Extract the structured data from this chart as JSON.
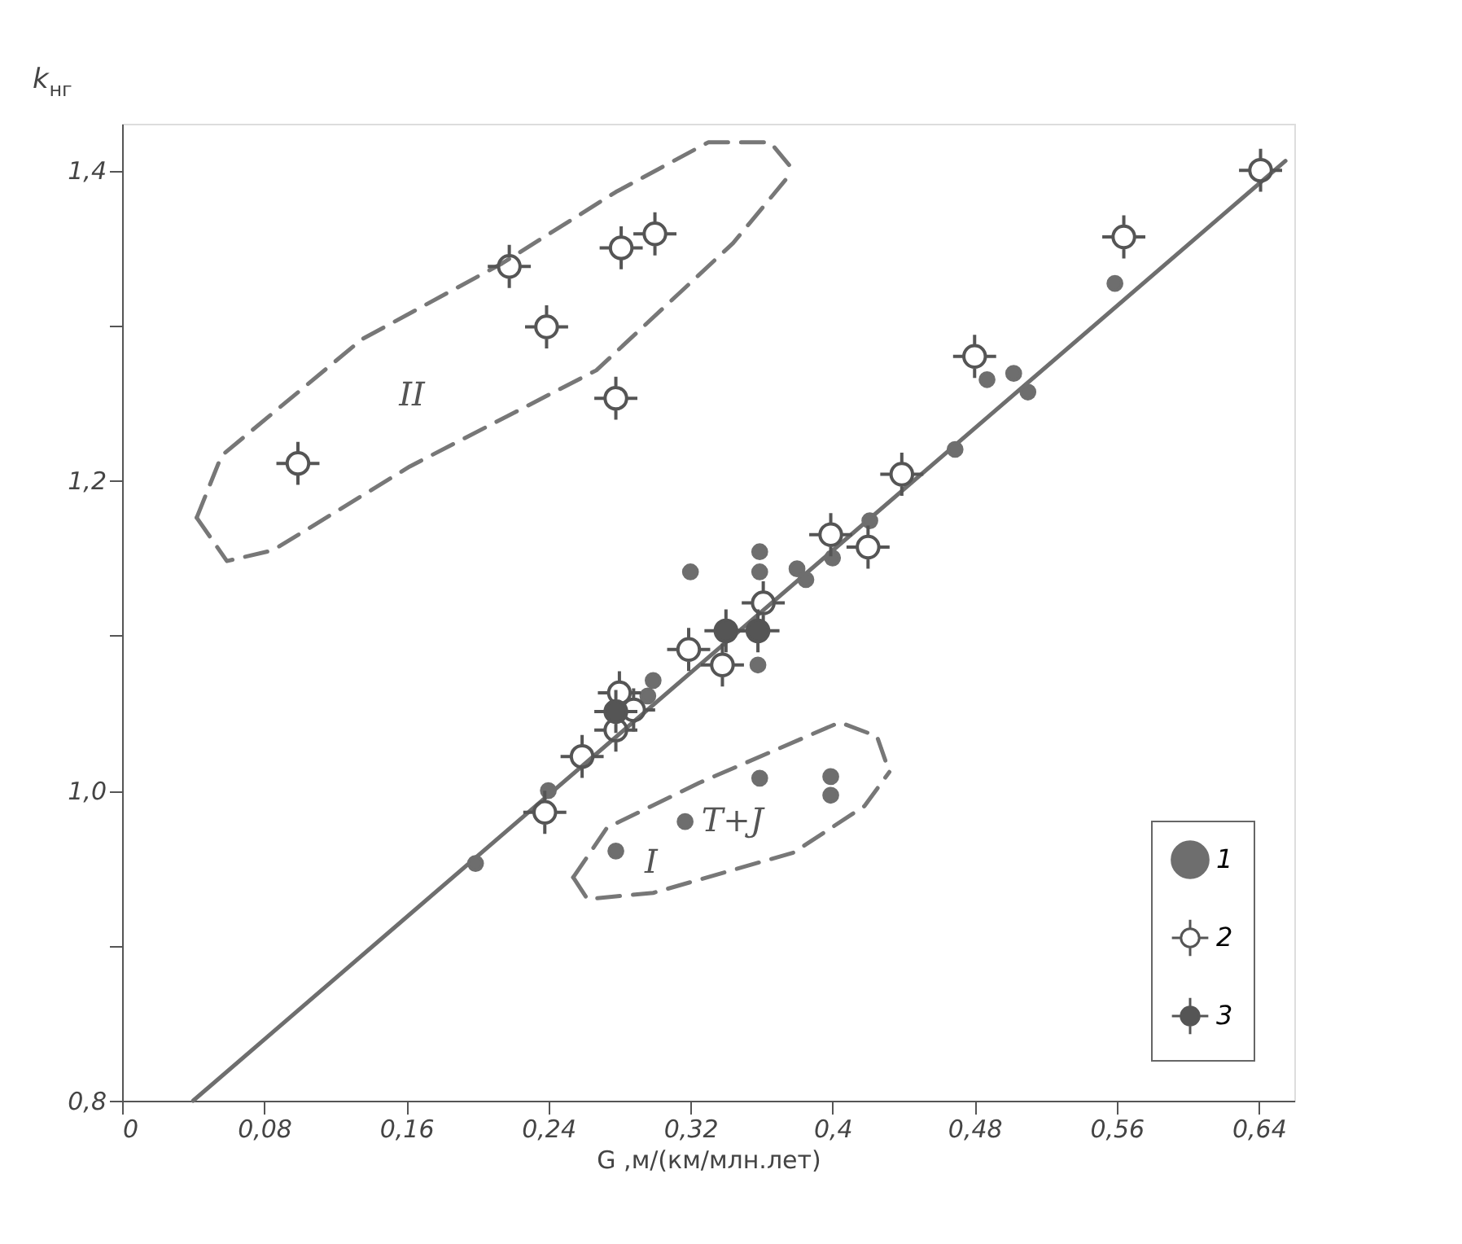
{
  "chart_data": {
    "type": "scatter",
    "xlabel": "G ,м/(км/млн.лет)",
    "ylabel": "k$_{нг}$",
    "xlim": [
      0,
      0.66
    ],
    "ylim": [
      0.8,
      1.43
    ],
    "xticks": [
      0,
      {
        "value": 0.08,
        "label": "0,08"
      },
      {
        "value": 0.16,
        "label": "0,16"
      },
      {
        "value": 0.24,
        "label": "0,24"
      },
      {
        "value": 0.32,
        "label": "0,32"
      },
      {
        "value": 0.4,
        "label": "0,4"
      },
      {
        "value": 0.48,
        "label": "0,48"
      },
      {
        "value": 0.56,
        "label": "0,56"
      },
      {
        "value": 0.64,
        "label": "0,64"
      }
    ],
    "yticks": [
      {
        "value": 0.8,
        "label": "0,8"
      },
      {
        "value": 0.9,
        "label": null
      },
      {
        "value": 1.0,
        "label": "1,0"
      },
      {
        "value": 1.1,
        "label": null
      },
      {
        "value": 1.2,
        "label": "1,2"
      },
      {
        "value": 1.3,
        "label": null
      },
      {
        "value": 1.4,
        "label": "1,4"
      }
    ],
    "grid": false,
    "legend": "bottom right",
    "annotations": [
      "II",
      "I",
      {
        "text": "T+J",
        "x": 0.317,
        "y": 0.98
      }
    ],
    "series": [
      {
        "name": "1",
        "marker": "circle",
        "color": "#6e6e6e",
        "x": [
          0.32,
          0.487,
          0.502,
          0.51,
          0.559,
          0.469,
          0.421,
          0.359,
          0.359,
          0.38,
          0.385,
          0.4,
          0.358,
          0.299,
          0.296,
          0.24,
          0.199,
          0.278,
          0.317,
          0.359,
          0.399,
          0.399
        ],
        "values": [
          1.141,
          1.265,
          1.269,
          1.257,
          1.327,
          1.22,
          1.174,
          1.154,
          1.141,
          1.143,
          1.136,
          1.15,
          1.081,
          1.071,
          1.061,
          1.0,
          0.953,
          0.961,
          0.98,
          1.008,
          1.009,
          0.997
        ]
      },
      {
        "name": "2",
        "marker": "cross",
        "color": "#555555",
        "x": [
          0.099,
          0.218,
          0.239,
          0.281,
          0.3,
          0.278,
          0.641,
          0.564,
          0.48,
          0.439,
          0.399,
          0.42,
          0.361,
          0.319,
          0.338,
          0.28,
          0.288,
          0.278,
          0.259,
          0.238
        ],
        "values": [
          1.211,
          1.338,
          1.299,
          1.35,
          1.359,
          1.253,
          1.4,
          1.357,
          1.28,
          1.204,
          1.165,
          1.157,
          1.121,
          1.091,
          1.081,
          1.063,
          1.052,
          1.039,
          1.022,
          0.986
        ]
      },
      {
        "name": "3",
        "marker": [
          "cross",
          "circle"
        ],
        "color": "#555555",
        "x": [
          0.34,
          0.358,
          0.278
        ],
        "values": [
          1.103,
          1.103,
          1.051
        ]
      },
      {
        "type": "line",
        "line_style": "solid",
        "color": "#6e6e6e",
        "x": [
          0.04,
          0.655
        ],
        "values": [
          0.8,
          1.406
        ]
      },
      {
        "type": "line",
        "line_style": "dashed",
        "color": "#777777",
        "x": [
          0.042,
          0.056,
          0.135,
          0.214,
          0.278,
          0.33,
          0.365,
          0.378
        ],
        "values": [
          1.176,
          1.216,
          1.291,
          1.34,
          1.386,
          1.418,
          1.418,
          1.4
        ]
      },
      {
        "type": "line",
        "line_style": "dashed",
        "color": "#777777",
        "x": [
          0.042,
          0.059,
          0.085,
          0.162,
          0.267,
          0.344,
          0.378
        ],
        "values": [
          1.176,
          1.148,
          1.155,
          1.209,
          1.271,
          1.353,
          1.4
        ]
      },
      {
        "type": "line",
        "line_style": "dashed",
        "color": "#777777",
        "x": [
          0.254,
          0.273,
          0.325,
          0.404,
          0.425,
          0.432
        ],
        "values": [
          0.944,
          0.976,
          1.005,
          1.044,
          1.035,
          1.012
        ]
      },
      {
        "type": "line",
        "line_style": "dashed",
        "color": "#777777",
        "x": [
          0.254,
          0.262,
          0.299,
          0.378,
          0.418,
          0.432
        ],
        "values": [
          0.944,
          0.93,
          0.934,
          0.96,
          0.99,
          1.012
        ]
      }
    ]
  }
}
